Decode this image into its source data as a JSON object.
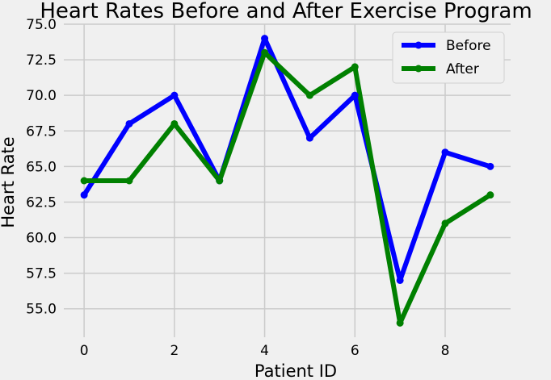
{
  "chart_data": {
    "type": "line",
    "title": "Heart Rates Before and After Exercise Program",
    "xlabel": "Patient ID",
    "ylabel": "Heart Rate",
    "x": [
      0,
      1,
      2,
      3,
      4,
      5,
      6,
      7,
      8,
      9
    ],
    "xticks": [
      0,
      2,
      4,
      6,
      8
    ],
    "yticks": [
      55.0,
      57.5,
      60.0,
      62.5,
      65.0,
      67.5,
      70.0,
      72.5,
      75.0
    ],
    "xlim": [
      -0.45,
      9.45
    ],
    "ylim": [
      53.0,
      75.0
    ],
    "grid": true,
    "legend_position": "top-right",
    "series": [
      {
        "name": "Before",
        "color": "#0000ff",
        "values": [
          63,
          68,
          70,
          64,
          74,
          67,
          70,
          57,
          66,
          65
        ]
      },
      {
        "name": "After",
        "color": "#008000",
        "values": [
          64,
          64,
          68,
          64,
          73,
          70,
          72,
          54,
          61,
          63
        ]
      }
    ]
  }
}
